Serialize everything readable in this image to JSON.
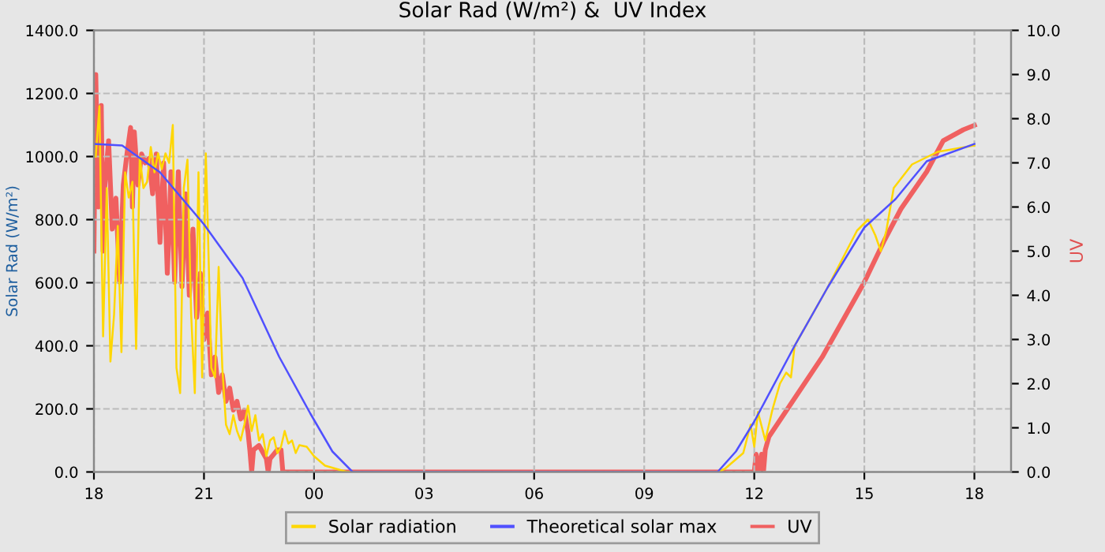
{
  "chart_data": {
    "type": "line",
    "title": "Solar Rad (W/m²) &  UV Index",
    "ylabel": "Solar Rad (W/m²)",
    "y2label": "UV",
    "xlim": [
      18,
      43
    ],
    "xticks": [
      {
        "value": 18,
        "label": "18"
      },
      {
        "value": 21,
        "label": "21"
      },
      {
        "value": 24,
        "label": "00"
      },
      {
        "value": 27,
        "label": "03"
      },
      {
        "value": 30,
        "label": "06"
      },
      {
        "value": 33,
        "label": "09"
      },
      {
        "value": 36,
        "label": "12"
      },
      {
        "value": 39,
        "label": "15"
      },
      {
        "value": 42,
        "label": "18"
      }
    ],
    "ylim": [
      0,
      1400
    ],
    "yticks": [
      {
        "value": 0,
        "label": "0.0"
      },
      {
        "value": 200,
        "label": "200.0"
      },
      {
        "value": 400,
        "label": "400.0"
      },
      {
        "value": 600,
        "label": "600.0"
      },
      {
        "value": 800,
        "label": "800.0"
      },
      {
        "value": 1000,
        "label": "1000.0"
      },
      {
        "value": 1200,
        "label": "1200.0"
      },
      {
        "value": 1400,
        "label": "1400.0"
      }
    ],
    "y2lim": [
      0,
      10
    ],
    "y2ticks": [
      {
        "value": 0,
        "label": "0.0"
      },
      {
        "value": 1,
        "label": "1.0"
      },
      {
        "value": 2,
        "label": "2.0"
      },
      {
        "value": 3,
        "label": "3.0"
      },
      {
        "value": 4,
        "label": "4.0"
      },
      {
        "value": 5,
        "label": "5.0"
      },
      {
        "value": 6,
        "label": "6.0"
      },
      {
        "value": 7,
        "label": "7.0"
      },
      {
        "value": 8,
        "label": "8.0"
      },
      {
        "value": 9,
        "label": "9.0"
      },
      {
        "value": 10,
        "label": "10.0"
      }
    ],
    "grid": true,
    "legend": "bottom",
    "marker": "none",
    "series": [
      {
        "name": "Solar radiation",
        "color": "#ffd700",
        "x": [
          18.05,
          18.15,
          18.25,
          18.35,
          18.45,
          18.55,
          18.65,
          18.75,
          18.85,
          18.95,
          19.05,
          19.15,
          19.25,
          19.35,
          19.45,
          19.55,
          19.65,
          19.75,
          19.85,
          19.95,
          20.05,
          20.15,
          20.25,
          20.35,
          20.45,
          20.55,
          20.65,
          20.75,
          20.85,
          20.95,
          21.05,
          21.1,
          21.2,
          21.3,
          21.4,
          21.5,
          21.6,
          21.7,
          21.8,
          21.9,
          22.0,
          22.1,
          22.2,
          22.3,
          22.4,
          22.5,
          22.6,
          22.7,
          22.8,
          22.9,
          23.0,
          23.1,
          23.2,
          23.3,
          23.4,
          23.5,
          23.6,
          23.8,
          24.0,
          24.3,
          24.6,
          24.9,
          35.0,
          35.2,
          35.5,
          35.7,
          35.9,
          36.0,
          36.1,
          36.3,
          36.5,
          36.7,
          36.87,
          37.0,
          37.1,
          38.0,
          38.8,
          39.1,
          39.3,
          39.45,
          39.6,
          39.8,
          40.3,
          41.0,
          42.0
        ],
        "values": [
          1000,
          1160,
          430,
          900,
          350,
          500,
          780,
          380,
          950,
          870,
          920,
          390,
          1000,
          900,
          920,
          1030,
          950,
          1010,
          960,
          1010,
          980,
          1100,
          330,
          250,
          900,
          990,
          500,
          250,
          950,
          300,
          1010,
          800,
          330,
          300,
          650,
          330,
          150,
          120,
          180,
          130,
          100,
          150,
          210,
          130,
          180,
          100,
          120,
          50,
          100,
          110,
          60,
          80,
          130,
          90,
          100,
          60,
          85,
          80,
          50,
          20,
          10,
          0,
          0,
          10,
          40,
          60,
          150,
          80,
          190,
          100,
          200,
          280,
          315,
          300,
          400,
          585,
          765,
          800,
          750,
          700,
          765,
          900,
          975,
          1015,
          1035
        ]
      },
      {
        "name": "Theoretical solar max",
        "color": "#5050ff",
        "x": [
          18.0,
          18.77,
          19.8,
          21.0,
          22.05,
          23.05,
          23.9,
          24.5,
          25.05,
          35.0,
          35.5,
          36.0,
          37.1,
          38.0,
          39.0,
          39.85,
          40.7,
          42.0
        ],
        "values": [
          1040,
          1035,
          950,
          785,
          615,
          365,
          185,
          65,
          0,
          0,
          65,
          160,
          400,
          585,
          775,
          865,
          985,
          1040
        ]
      },
      {
        "name": "UV",
        "color": "#f06060",
        "axis": "y2",
        "x": [
          18.0,
          18.05,
          18.12,
          18.2,
          18.25,
          18.3,
          18.4,
          18.5,
          18.6,
          18.7,
          18.8,
          18.9,
          19.0,
          19.05,
          19.1,
          19.2,
          19.3,
          19.4,
          19.5,
          19.6,
          19.7,
          19.8,
          19.9,
          20.0,
          20.05,
          20.1,
          20.2,
          20.3,
          20.4,
          20.5,
          20.6,
          20.7,
          20.8,
          20.9,
          21.0,
          21.1,
          21.2,
          21.3,
          21.4,
          21.5,
          21.6,
          21.7,
          21.8,
          21.9,
          22.0,
          22.1,
          22.2,
          22.25,
          22.3,
          22.35,
          22.5,
          22.7,
          22.75,
          22.8,
          22.9,
          23.0,
          23.1,
          23.15,
          23.5,
          36.0,
          36.05,
          36.1,
          36.2,
          36.25,
          36.3,
          36.4,
          37.85,
          39.0,
          39.55,
          40.0,
          40.7,
          41.15,
          41.7,
          42.0
        ],
        "values": [
          5.0,
          9.0,
          6.0,
          8.3,
          5.0,
          6.5,
          7.5,
          5.5,
          6.2,
          4.3,
          6.5,
          7.2,
          7.8,
          6.0,
          7.7,
          6.5,
          7.2,
          7.0,
          7.1,
          6.3,
          7.2,
          5.2,
          7.0,
          4.5,
          5.5,
          6.8,
          4.3,
          6.8,
          4.2,
          6.3,
          4.0,
          5.5,
          3.5,
          4.5,
          3.0,
          3.6,
          2.2,
          2.6,
          1.8,
          2.2,
          1.6,
          1.9,
          1.4,
          1.6,
          1.2,
          1.4,
          0.9,
          0.5,
          0.0,
          0.5,
          0.6,
          0.3,
          0.0,
          0.3,
          0.4,
          0.5,
          0.5,
          0.0,
          0.0,
          0.0,
          0.4,
          0.0,
          0.4,
          0.0,
          0.5,
          0.8,
          2.6,
          4.3,
          5.25,
          5.96,
          6.8,
          7.5,
          7.75,
          7.85
        ]
      }
    ]
  }
}
